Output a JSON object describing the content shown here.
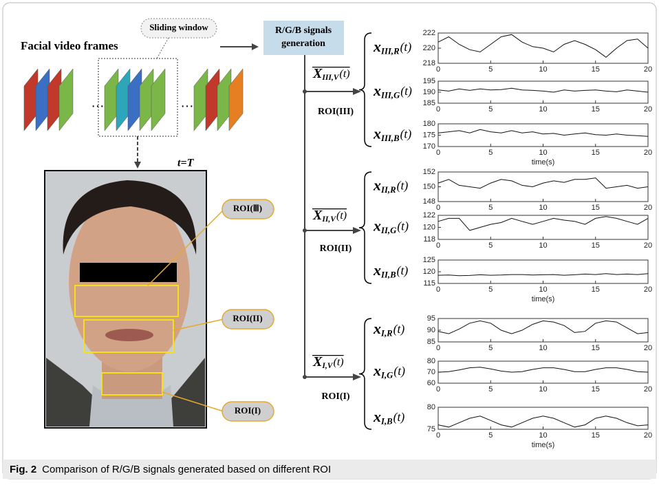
{
  "header": {
    "frames_label": "Facial video frames",
    "sliding_window": "Sliding window",
    "box": [
      "R/G/B signals",
      "generation"
    ],
    "ellipsis": "…",
    "t_label": "t=T"
  },
  "photo_labels": [
    "ROI(Ⅲ)",
    "ROI(II)",
    "ROI(I)"
  ],
  "time": [
    0,
    1,
    2,
    3,
    4,
    5,
    6,
    7,
    8,
    9,
    10,
    11,
    12,
    13,
    14,
    15,
    16,
    17,
    18,
    19,
    20
  ],
  "groups": [
    {
      "label": {
        "base": "X",
        "sub": "III,V",
        "arg": "(t)"
      },
      "roi": "ROI(III)",
      "panels": [
        {
          "label": {
            "base": "x",
            "sub": "III,R",
            "arg": "(t)"
          },
          "ylim": [
            218,
            222
          ],
          "yticks": [
            218,
            220,
            222
          ],
          "xlim": [
            0,
            20
          ],
          "xticks": [
            0,
            5,
            10,
            15,
            20
          ],
          "values": [
            220.8,
            221.5,
            220.5,
            219.8,
            219.5,
            220.5,
            221.5,
            221.8,
            220.8,
            220.2,
            220,
            219.5,
            220.5,
            221,
            220.5,
            219.8,
            218.8,
            220,
            221,
            221.2,
            220
          ]
        },
        {
          "label": {
            "base": "x",
            "sub": "III,G",
            "arg": "(t)"
          },
          "ylim": [
            185,
            195
          ],
          "yticks": [
            185,
            190,
            195
          ],
          "xlim": [
            0,
            20
          ],
          "xticks": [
            0,
            5,
            10,
            15,
            20
          ],
          "values": [
            191,
            190.5,
            191.5,
            190.8,
            191.5,
            191,
            191.2,
            191.8,
            191,
            190.8,
            190.5,
            190,
            191,
            190.5,
            190.8,
            191,
            190.5,
            190.2,
            191,
            190.5,
            190
          ]
        },
        {
          "label": {
            "base": "x",
            "sub": "III,B",
            "arg": "(t)"
          },
          "ylim": [
            170,
            180
          ],
          "yticks": [
            170,
            175,
            180
          ],
          "xlim": [
            0,
            20
          ],
          "xticks": [
            0,
            5,
            10,
            15,
            20
          ],
          "xlabel": "time(s)",
          "values": [
            176,
            176.5,
            177,
            176,
            177.5,
            176.5,
            176,
            177,
            176,
            176.5,
            175.5,
            175.8,
            175,
            175.5,
            176,
            175.2,
            175,
            175.5,
            175,
            174.8,
            174.5
          ]
        }
      ]
    },
    {
      "label": {
        "base": "X",
        "sub": "II,V",
        "arg": "(t)"
      },
      "roi": "ROI(II)",
      "panels": [
        {
          "label": {
            "base": "x",
            "sub": "II,R",
            "arg": "(t)"
          },
          "ylim": [
            148,
            152
          ],
          "yticks": [
            148,
            150,
            152
          ],
          "xlim": [
            0,
            20
          ],
          "xticks": [
            0,
            5,
            10,
            15,
            20
          ],
          "values": [
            150.5,
            151,
            150.2,
            150,
            149.8,
            150.5,
            151,
            150.8,
            150.2,
            150,
            150.5,
            150.8,
            150.6,
            151,
            151,
            151.2,
            149.8,
            150,
            150.2,
            149.8,
            150
          ]
        },
        {
          "label": {
            "base": "x",
            "sub": "II,G",
            "arg": "(t)"
          },
          "ylim": [
            118,
            122
          ],
          "yticks": [
            118,
            120,
            122
          ],
          "xlim": [
            0,
            20
          ],
          "xticks": [
            0,
            5,
            10,
            15,
            20
          ],
          "values": [
            121,
            121.5,
            121.5,
            119.5,
            120,
            120.5,
            120.8,
            121.5,
            121,
            120.5,
            121,
            121.5,
            121.2,
            121,
            120.5,
            121.5,
            121.8,
            121.5,
            121,
            120.5,
            121.5
          ]
        },
        {
          "label": {
            "base": "x",
            "sub": "II,B",
            "arg": "(t)"
          },
          "ylim": [
            115,
            125
          ],
          "yticks": [
            115,
            120,
            125
          ],
          "xlim": [
            0,
            20
          ],
          "xticks": [
            0,
            5,
            10,
            15,
            20
          ],
          "xlabel": "time(s)",
          "values": [
            118.5,
            118.6,
            118.3,
            118.4,
            118.7,
            118.5,
            118.6,
            118.8,
            118.8,
            118.6,
            118.7,
            118.8,
            118.5,
            118.7,
            119,
            118.8,
            119.2,
            118.8,
            119,
            118.8,
            119.2
          ]
        }
      ]
    },
    {
      "label": {
        "base": "X",
        "sub": "I,V",
        "arg": "(t)"
      },
      "roi": "ROI(I)",
      "panels": [
        {
          "label": {
            "base": "x",
            "sub": "I,R",
            "arg": "(t)"
          },
          "ylim": [
            85,
            95
          ],
          "yticks": [
            85,
            90,
            95
          ],
          "xlim": [
            0,
            20
          ],
          "xticks": [
            0,
            5,
            10,
            15,
            20
          ],
          "values": [
            89.5,
            88.5,
            90.5,
            93,
            94,
            93,
            90,
            88.5,
            90,
            92.5,
            94,
            93.5,
            92,
            89,
            89.5,
            93,
            94,
            93.5,
            91,
            88.5,
            89
          ]
        },
        {
          "label": {
            "base": "x",
            "sub": "I,G",
            "arg": "(t)"
          },
          "ylim": [
            60,
            80
          ],
          "yticks": [
            60,
            70,
            80
          ],
          "xlim": [
            0,
            20
          ],
          "xticks": [
            0,
            5,
            10,
            15,
            20
          ],
          "values": [
            70,
            70.5,
            72,
            74,
            74.5,
            73,
            71,
            70,
            70.5,
            72.5,
            74,
            74,
            72.5,
            70.5,
            70.5,
            72.5,
            74,
            74,
            72.5,
            70.5,
            70
          ]
        },
        {
          "label": {
            "base": "x",
            "sub": "I,B",
            "arg": "(t)"
          },
          "ylim": [
            75,
            80
          ],
          "yticks": [
            75,
            80
          ],
          "xlim": [
            0,
            20
          ],
          "xticks": [
            0,
            5,
            10,
            15,
            20
          ],
          "xlabel": "time(s)",
          "values": [
            76,
            75.5,
            76.5,
            77.5,
            78,
            77,
            76,
            75.5,
            76.5,
            77.5,
            78,
            77.5,
            76.5,
            75.5,
            76,
            77.5,
            78,
            77.5,
            76.5,
            75.8,
            76
          ]
        }
      ]
    }
  ],
  "caption": {
    "label": "Fig. 2",
    "text": "Comparison of R/G/B signals generated based on different ROI"
  }
}
